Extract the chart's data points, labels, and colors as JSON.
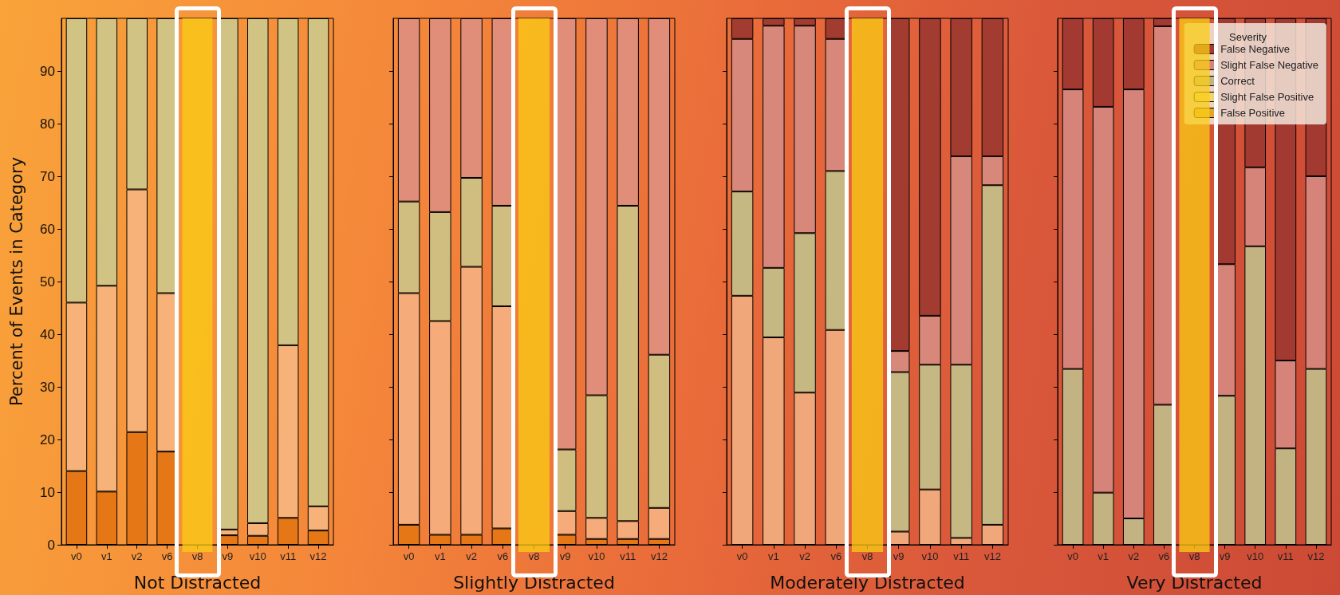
{
  "chart_data": [
    {
      "type": "bar",
      "stacked": true,
      "xlabel": "Not Distracted",
      "bands": [
        {
          "axis": "x",
          "from": "v8",
          "to": "v8",
          "color": "#facd14"
        }
      ],
      "ylabel": "Percent of Events in Category",
      "categories": [
        "v0",
        "v1",
        "v2",
        "v6",
        "v8",
        "v9",
        "v10",
        "v11",
        "v12"
      ],
      "ylim": [
        0,
        100
      ],
      "yticks": [
        0,
        10,
        20,
        30,
        40,
        50,
        60,
        70,
        80,
        90
      ],
      "grid": false,
      "series": [
        {
          "color": "#e57717",
          "values": [
            14,
            10.1,
            21.4,
            17.7,
            null,
            1.8,
            1.7,
            5.1,
            2.7
          ]
        },
        {
          "color": "#f7b27a",
          "values": [
            32,
            39.1,
            46.1,
            30.1,
            null,
            1.1,
            2.4,
            32.8,
            4.6
          ]
        },
        {
          "color": "#d0c383",
          "values": [
            54,
            50.8,
            32.5,
            52.2,
            null,
            97.1,
            95.9,
            62.1,
            92.7
          ]
        }
      ]
    },
    {
      "type": "bar",
      "stacked": true,
      "xlabel": "Slightly Distracted",
      "bands": [
        {
          "axis": "x",
          "from": "v8",
          "to": "v8",
          "color": "#facd14"
        }
      ],
      "categories": [
        "v0",
        "v1",
        "v2",
        "v6",
        "v8",
        "v9",
        "v10",
        "v11",
        "v12"
      ],
      "ylim": [
        0,
        100
      ],
      "yticks": [
        0,
        10,
        20,
        30,
        40,
        50,
        60,
        70,
        80,
        90
      ],
      "tick_labels": "x",
      "grid": false,
      "series": [
        {
          "color": "#e57717",
          "values": [
            3.8,
            1.9,
            1.9,
            3.1,
            null,
            1.9,
            1.1,
            1.1,
            1.1
          ]
        },
        {
          "color": "#f5ac7a",
          "values": [
            44,
            40.6,
            50.9,
            42.2,
            null,
            4.5,
            4,
            3.4,
            5.9
          ]
        },
        {
          "color": "#cfbe80",
          "values": [
            17.4,
            20.7,
            16.9,
            19.1,
            null,
            11.7,
            23.3,
            59.9,
            29.1
          ]
        },
        {
          "color": "#e08e7a",
          "values": [
            34.8,
            36.8,
            30.3,
            35.6,
            null,
            81.9,
            71.6,
            35.6,
            63.9
          ]
        }
      ]
    },
    {
      "type": "bar",
      "stacked": true,
      "xlabel": "Moderately Distracted",
      "bands": [
        {
          "axis": "x",
          "from": "v8",
          "to": "v8",
          "color": "#facd14"
        }
      ],
      "categories": [
        "v0",
        "v1",
        "v2",
        "v6",
        "v8",
        "v9",
        "v10",
        "v11",
        "v12"
      ],
      "ylim": [
        0,
        100
      ],
      "yticks": [
        0,
        10,
        20,
        30,
        40,
        50,
        60,
        70,
        80,
        90
      ],
      "tick_labels": "x",
      "grid": false,
      "series": [
        {
          "color": "#f0a87a",
          "values": [
            47.3,
            39.4,
            28.9,
            40.8,
            null,
            2.5,
            10.5,
            1.3,
            3.8
          ]
        },
        {
          "color": "#c6b882",
          "values": [
            19.8,
            13.2,
            30.3,
            30.2,
            null,
            30.3,
            23.7,
            32.9,
            64.5
          ]
        },
        {
          "color": "#d8887a",
          "values": [
            29,
            46,
            39.4,
            25.1,
            null,
            4,
            9.3,
            39.6,
            5.5
          ]
        },
        {
          "color": "#a33c30",
          "values": [
            3.9,
            1.4,
            1.4,
            3.9,
            null,
            63.2,
            56.5,
            26.2,
            26.2
          ]
        }
      ]
    },
    {
      "type": "bar",
      "stacked": true,
      "xlabel": "Very Distracted",
      "bands": [
        {
          "axis": "x",
          "from": "v8",
          "to": "v8",
          "color": "#facd14"
        }
      ],
      "categories": [
        "v0",
        "v1",
        "v2",
        "v6",
        "v8",
        "v9",
        "v10",
        "v11",
        "v12"
      ],
      "ylim": [
        0,
        100
      ],
      "yticks": [
        0,
        10,
        20,
        30,
        40,
        50,
        60,
        70,
        80,
        90
      ],
      "tick_labels": "x",
      "grid": false,
      "legend": "top right",
      "legend_title": "Severity",
      "series": [
        {
          "name": "False Positive",
          "color": "#e5a52a",
          "values": [
            0,
            0,
            0,
            0,
            null,
            0,
            0,
            0,
            0
          ]
        },
        {
          "name": "Slight False Positive",
          "color": "#f2d372",
          "values": [
            0,
            0,
            0,
            0,
            null,
            0,
            0,
            0,
            0
          ]
        },
        {
          "name": "Correct",
          "color": "#c4b382",
          "values": [
            33.4,
            9.9,
            5,
            26.6,
            null,
            28.3,
            56.7,
            18.3,
            33.4
          ]
        },
        {
          "name": "Slight False Negative",
          "color": "#d6837a",
          "values": [
            53.1,
            73.3,
            81.5,
            71.9,
            null,
            25,
            15,
            16.7,
            36.6
          ]
        },
        {
          "name": "False Negative",
          "color": "#a33a31",
          "values": [
            13.5,
            16.8,
            13.5,
            1.5,
            null,
            46.7,
            28.3,
            65,
            30
          ]
        }
      ]
    }
  ]
}
